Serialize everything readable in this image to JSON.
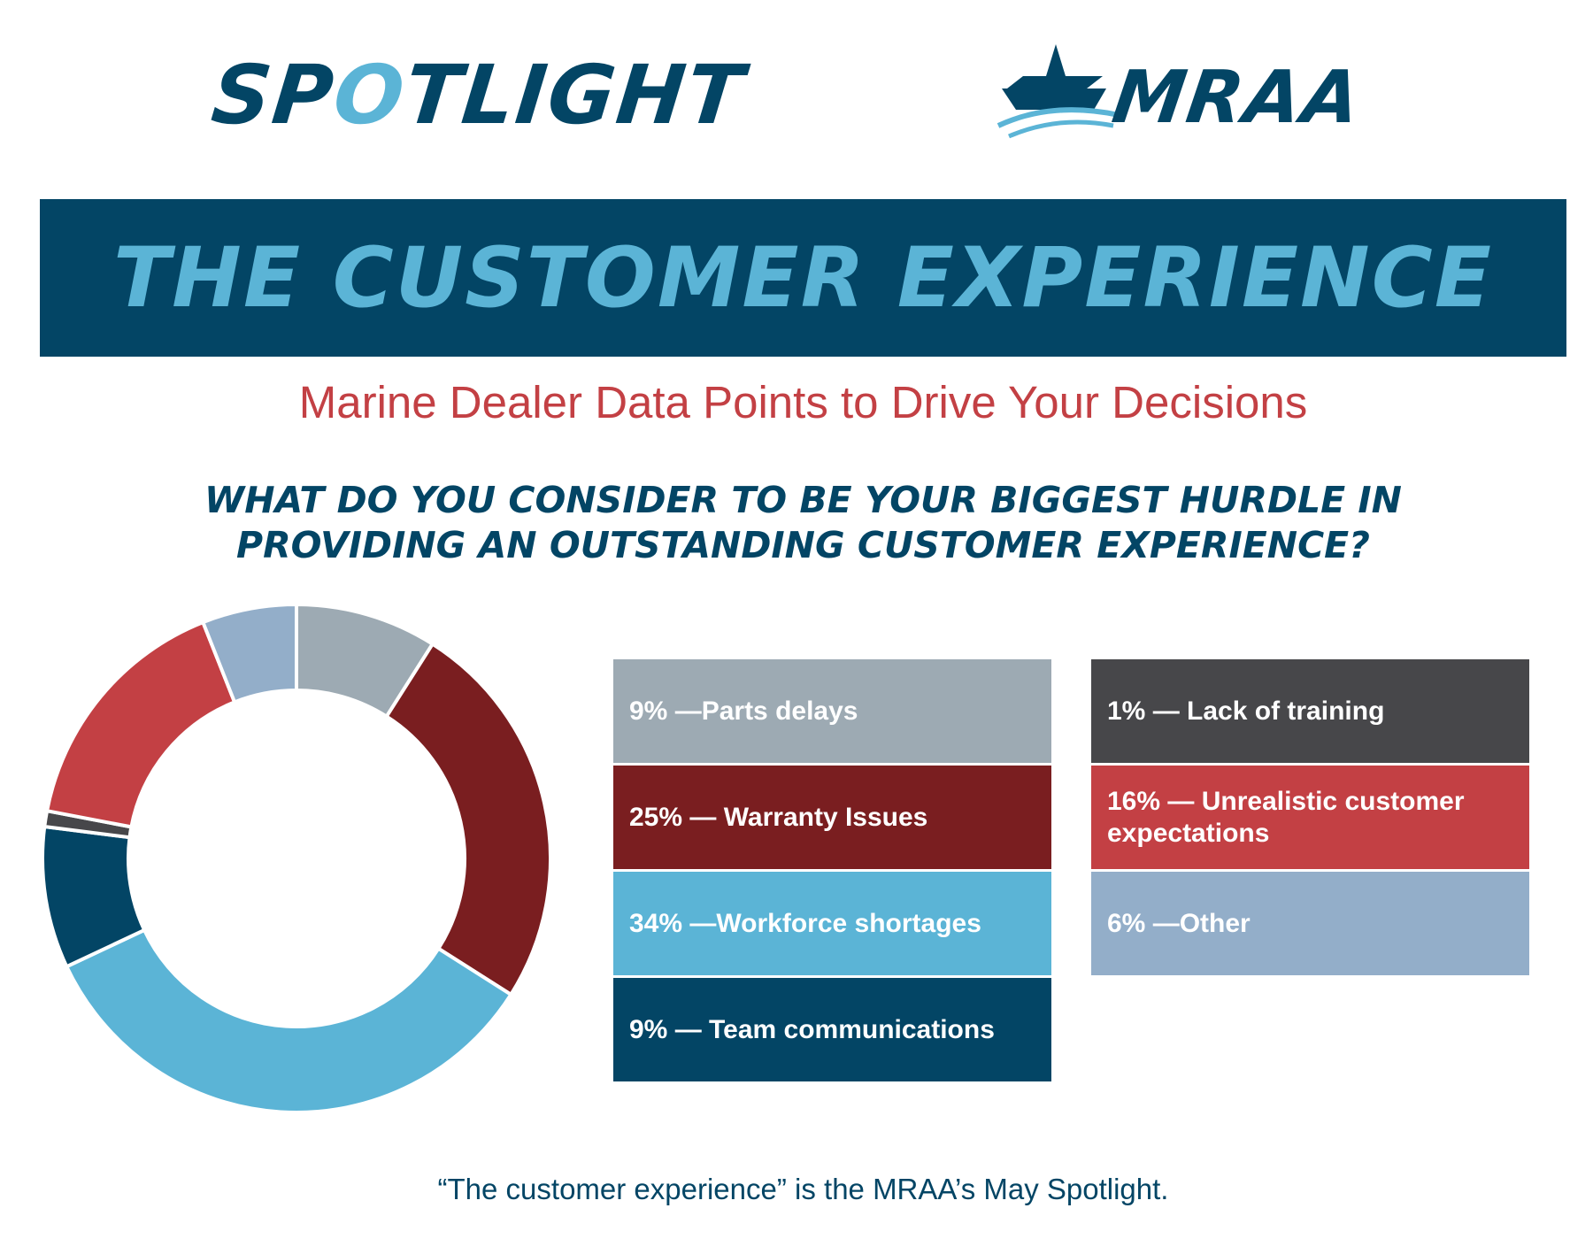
{
  "header": {
    "logo_left_prefix": "SP",
    "logo_left_accent": "O",
    "logo_left_suffix": "TLIGHT",
    "logo_right": "MRAA"
  },
  "banner": {
    "title": "THE CUSTOMER EXPERIENCE"
  },
  "subtitle": "Marine Dealer Data Points to Drive Your Decisions",
  "question": {
    "line1": "WHAT DO YOU CONSIDER TO BE YOUR BIGGEST HURDLE IN",
    "line2": "PROVIDING AN OUTSTANDING CUSTOMER EXPERIENCE?"
  },
  "legend": {
    "left": [
      {
        "text": "9% —Parts delays",
        "color": "#9daab3"
      },
      {
        "text": "25% — Warranty Issues",
        "color": "#7a1e20"
      },
      {
        "text": "34% —Workforce shortages",
        "color": "#5bb4d6"
      },
      {
        "text": "9% —  Team communications",
        "color": "#034565"
      }
    ],
    "right": [
      {
        "text": "1% — Lack of training",
        "color": "#47474a"
      },
      {
        "text": "16% — Unrealistic customer expectations",
        "color": "#c34044"
      },
      {
        "text": "6% —Other",
        "color": "#93aec9"
      }
    ]
  },
  "chart_data": {
    "type": "pie",
    "style": "donut",
    "title": "WHAT DO YOU CONSIDER TO BE YOUR BIGGEST HURDLE IN PROVIDING AN OUTSTANDING CUSTOMER EXPERIENCE?",
    "categories": [
      "Parts delays",
      "Warranty Issues",
      "Workforce shortages",
      "Team communications",
      "Lack of training",
      "Unrealistic customer expectations",
      "Other"
    ],
    "values": [
      9,
      25,
      34,
      9,
      1,
      16,
      6
    ],
    "colors": [
      "#9daab3",
      "#7a1e20",
      "#5bb4d6",
      "#034565",
      "#47474a",
      "#c34044",
      "#93aec9"
    ],
    "unit": "%"
  },
  "footer": "“The customer experience” is the MRAA’s May Spotlight."
}
